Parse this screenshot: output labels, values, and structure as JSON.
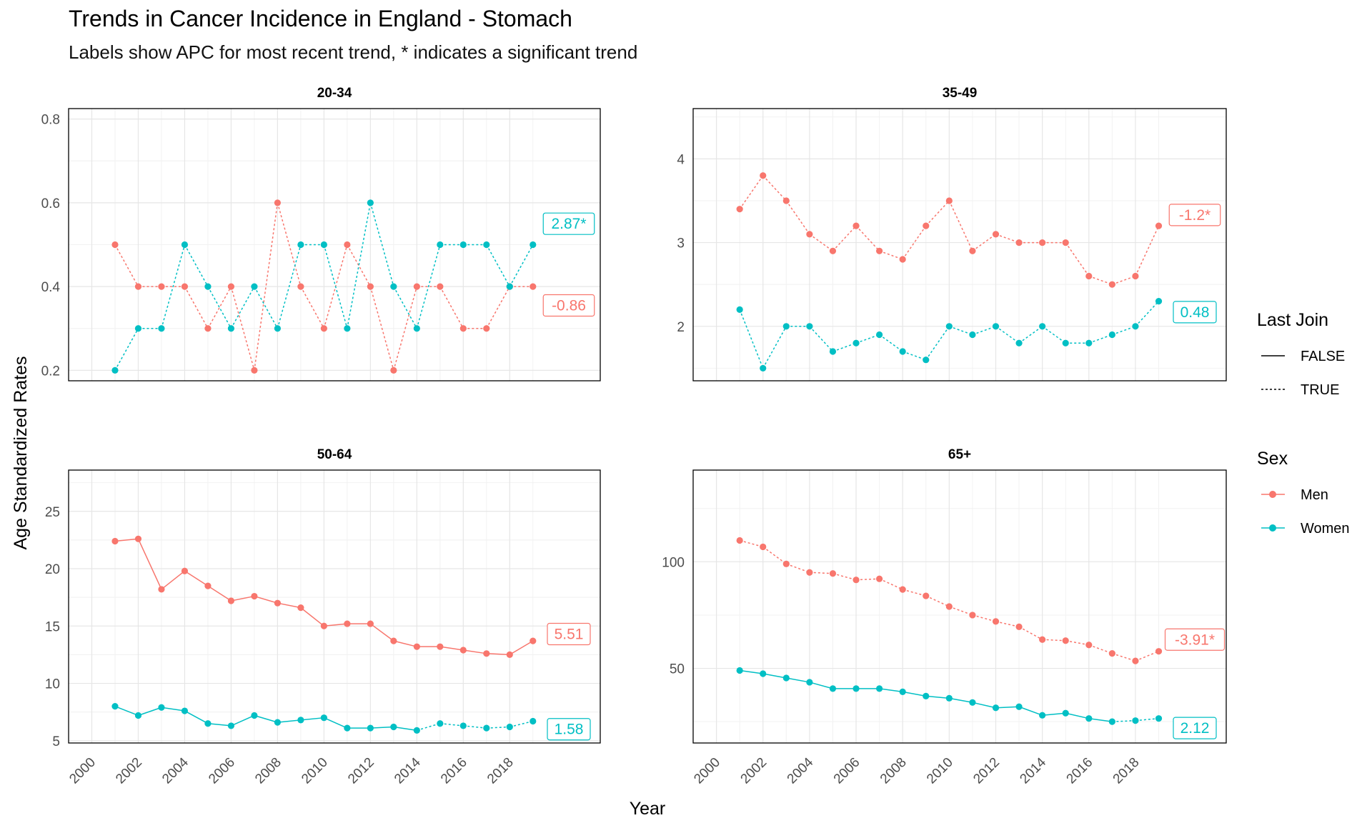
{
  "title": "Trends in Cancer Incidence in England - Stomach",
  "subtitle": "Labels show APC for most recent trend, * indicates a significant trend",
  "chart_data": {
    "type": "line",
    "xlabel": "Year",
    "ylabel": "Age Standardized Rates",
    "x_breaks": [
      2000,
      2002,
      2004,
      2006,
      2008,
      2010,
      2012,
      2014,
      2016,
      2018
    ],
    "x_tick_labels": [
      "2000",
      "2002",
      "2004",
      "2006",
      "2008",
      "2010",
      "2012",
      "2014",
      "2016",
      "2018"
    ],
    "xlim": [
      1999.0,
      2021.9
    ],
    "grid": true,
    "colors": {
      "Men": "#F8766D",
      "Women": "#00BFC4"
    },
    "legend": {
      "placement": "right",
      "linetype_title": "Last Join",
      "linetype_entries": [
        "FALSE",
        "TRUE"
      ],
      "color_title": "Sex",
      "color_entries": [
        "Men",
        "Women"
      ]
    },
    "panels": [
      {
        "name": "20-34",
        "ylim": [
          0.175,
          0.825
        ],
        "y_breaks": [
          0.2,
          0.4,
          0.6,
          0.8
        ],
        "y_tick_labels": [
          "0.2",
          "0.4",
          "0.6",
          "0.8"
        ],
        "series": [
          {
            "name": "Men",
            "x": [
              2001,
              2002,
              2003,
              2004,
              2005,
              2006,
              2007,
              2008,
              2009,
              2010,
              2011,
              2012,
              2013,
              2014,
              2015,
              2016,
              2017,
              2018,
              2019
            ],
            "y": [
              0.5,
              0.4,
              0.4,
              0.4,
              0.3,
              0.4,
              0.2,
              0.6,
              0.4,
              0.3,
              0.5,
              0.4,
              0.2,
              0.4,
              0.4,
              0.3,
              0.3,
              0.4,
              0.4
            ],
            "last_join": [
              true,
              true,
              true,
              true,
              true,
              true,
              true,
              true,
              true,
              true,
              true,
              true,
              true,
              true,
              true,
              true,
              true,
              true
            ],
            "apc_label": "-0.86",
            "label_y": 0.355
          },
          {
            "name": "Women",
            "x": [
              2001,
              2002,
              2003,
              2004,
              2005,
              2006,
              2007,
              2008,
              2009,
              2010,
              2011,
              2012,
              2013,
              2014,
              2015,
              2016,
              2017,
              2018,
              2019
            ],
            "y": [
              0.2,
              0.3,
              0.3,
              0.5,
              0.4,
              0.3,
              0.4,
              0.3,
              0.5,
              0.5,
              0.3,
              0.6,
              0.4,
              0.3,
              0.5,
              0.5,
              0.5,
              0.4,
              0.5
            ],
            "last_join": [
              true,
              true,
              true,
              true,
              true,
              true,
              true,
              true,
              true,
              true,
              true,
              true,
              true,
              true,
              true,
              true,
              true,
              true
            ],
            "apc_label": "2.87*",
            "label_y": 0.55
          }
        ]
      },
      {
        "name": "35-49",
        "ylim": [
          1.35,
          4.6
        ],
        "y_breaks": [
          2,
          3,
          4
        ],
        "y_tick_labels": [
          "2",
          "3",
          "4"
        ],
        "series": [
          {
            "name": "Men",
            "x": [
              2001,
              2002,
              2003,
              2004,
              2005,
              2006,
              2007,
              2008,
              2009,
              2010,
              2011,
              2012,
              2013,
              2014,
              2015,
              2016,
              2017,
              2018,
              2019
            ],
            "y": [
              3.4,
              3.8,
              3.5,
              3.1,
              2.9,
              3.2,
              2.9,
              2.8,
              3.2,
              3.5,
              2.9,
              3.1,
              3.0,
              3.0,
              3.0,
              2.6,
              2.5,
              2.6,
              3.2
            ],
            "last_join": [
              true,
              true,
              true,
              true,
              true,
              true,
              true,
              true,
              true,
              true,
              true,
              true,
              true,
              true,
              true,
              true,
              true,
              true
            ],
            "apc_label": "-1.2*",
            "label_y": 3.33
          },
          {
            "name": "Women",
            "x": [
              2001,
              2002,
              2003,
              2004,
              2005,
              2006,
              2007,
              2008,
              2009,
              2010,
              2011,
              2012,
              2013,
              2014,
              2015,
              2016,
              2017,
              2018,
              2019
            ],
            "y": [
              2.2,
              1.5,
              2.0,
              2.0,
              1.7,
              1.8,
              1.9,
              1.7,
              1.6,
              2.0,
              1.9,
              2.0,
              1.8,
              2.0,
              1.8,
              1.8,
              1.9,
              2.0,
              2.3
            ],
            "last_join": [
              true,
              true,
              true,
              true,
              true,
              true,
              true,
              true,
              true,
              true,
              true,
              true,
              true,
              true,
              true,
              true,
              true,
              true
            ],
            "apc_label": "0.48",
            "label_y": 2.17
          }
        ]
      },
      {
        "name": "50-64",
        "ylim": [
          4.8,
          28.6
        ],
        "y_breaks": [
          5,
          10,
          15,
          20,
          25
        ],
        "y_tick_labels": [
          "5",
          "10",
          "15",
          "20",
          "25"
        ],
        "series": [
          {
            "name": "Men",
            "x": [
              2001,
              2002,
              2003,
              2004,
              2005,
              2006,
              2007,
              2008,
              2009,
              2010,
              2011,
              2012,
              2013,
              2014,
              2015,
              2016,
              2017,
              2018,
              2019
            ],
            "y": [
              22.4,
              22.6,
              18.2,
              19.8,
              18.5,
              17.2,
              17.6,
              17.0,
              16.6,
              15.0,
              15.2,
              15.2,
              13.7,
              13.2,
              13.2,
              12.9,
              12.6,
              12.5,
              13.7
            ],
            "last_join": [
              false,
              false,
              false,
              false,
              false,
              false,
              false,
              false,
              false,
              false,
              false,
              false,
              false,
              false,
              false,
              false,
              false,
              false
            ],
            "apc_label": "5.51",
            "label_y": 14.3
          },
          {
            "name": "Women",
            "x": [
              2001,
              2002,
              2003,
              2004,
              2005,
              2006,
              2007,
              2008,
              2009,
              2010,
              2011,
              2012,
              2013,
              2014,
              2015,
              2016,
              2017,
              2018,
              2019
            ],
            "y": [
              8.0,
              7.2,
              7.9,
              7.6,
              6.5,
              6.3,
              7.2,
              6.6,
              6.8,
              7.0,
              6.1,
              6.1,
              6.2,
              5.9,
              6.5,
              6.3,
              6.1,
              6.2,
              6.7
            ],
            "last_join": [
              false,
              false,
              false,
              false,
              false,
              false,
              false,
              false,
              false,
              false,
              false,
              false,
              false,
              true,
              true,
              true,
              true,
              true
            ],
            "apc_label": "1.58",
            "label_y": 6.0
          }
        ]
      },
      {
        "name": "65+",
        "ylim": [
          15,
          143
        ],
        "y_breaks": [
          50,
          100
        ],
        "y_tick_labels": [
          "50",
          "100"
        ],
        "series": [
          {
            "name": "Men",
            "x": [
              2001,
              2002,
              2003,
              2004,
              2005,
              2006,
              2007,
              2008,
              2009,
              2010,
              2011,
              2012,
              2013,
              2014,
              2015,
              2016,
              2017,
              2018,
              2019
            ],
            "y": [
              110,
              107,
              99,
              95,
              94.5,
              91.5,
              92,
              87,
              84,
              79,
              75,
              72,
              69.5,
              63.5,
              63,
              61,
              57,
              53.5,
              58
            ],
            "last_join": [
              true,
              true,
              true,
              true,
              true,
              true,
              true,
              true,
              true,
              true,
              true,
              true,
              true,
              true,
              true,
              true,
              true,
              true
            ],
            "apc_label": "-3.91*",
            "label_y": 63.5
          },
          {
            "name": "Women",
            "x": [
              2001,
              2002,
              2003,
              2004,
              2005,
              2006,
              2007,
              2008,
              2009,
              2010,
              2011,
              2012,
              2013,
              2014,
              2015,
              2016,
              2017,
              2018,
              2019
            ],
            "y": [
              49,
              47.5,
              45.5,
              43.5,
              40.5,
              40.5,
              40.5,
              39,
              37,
              36,
              34,
              31.5,
              32,
              28,
              29,
              26.5,
              25,
              25.5,
              26.5
            ],
            "last_join": [
              false,
              false,
              false,
              false,
              false,
              false,
              false,
              false,
              false,
              false,
              false,
              false,
              false,
              false,
              false,
              false,
              true,
              true
            ],
            "apc_label": "2.12",
            "label_y": 22
          }
        ]
      }
    ]
  }
}
